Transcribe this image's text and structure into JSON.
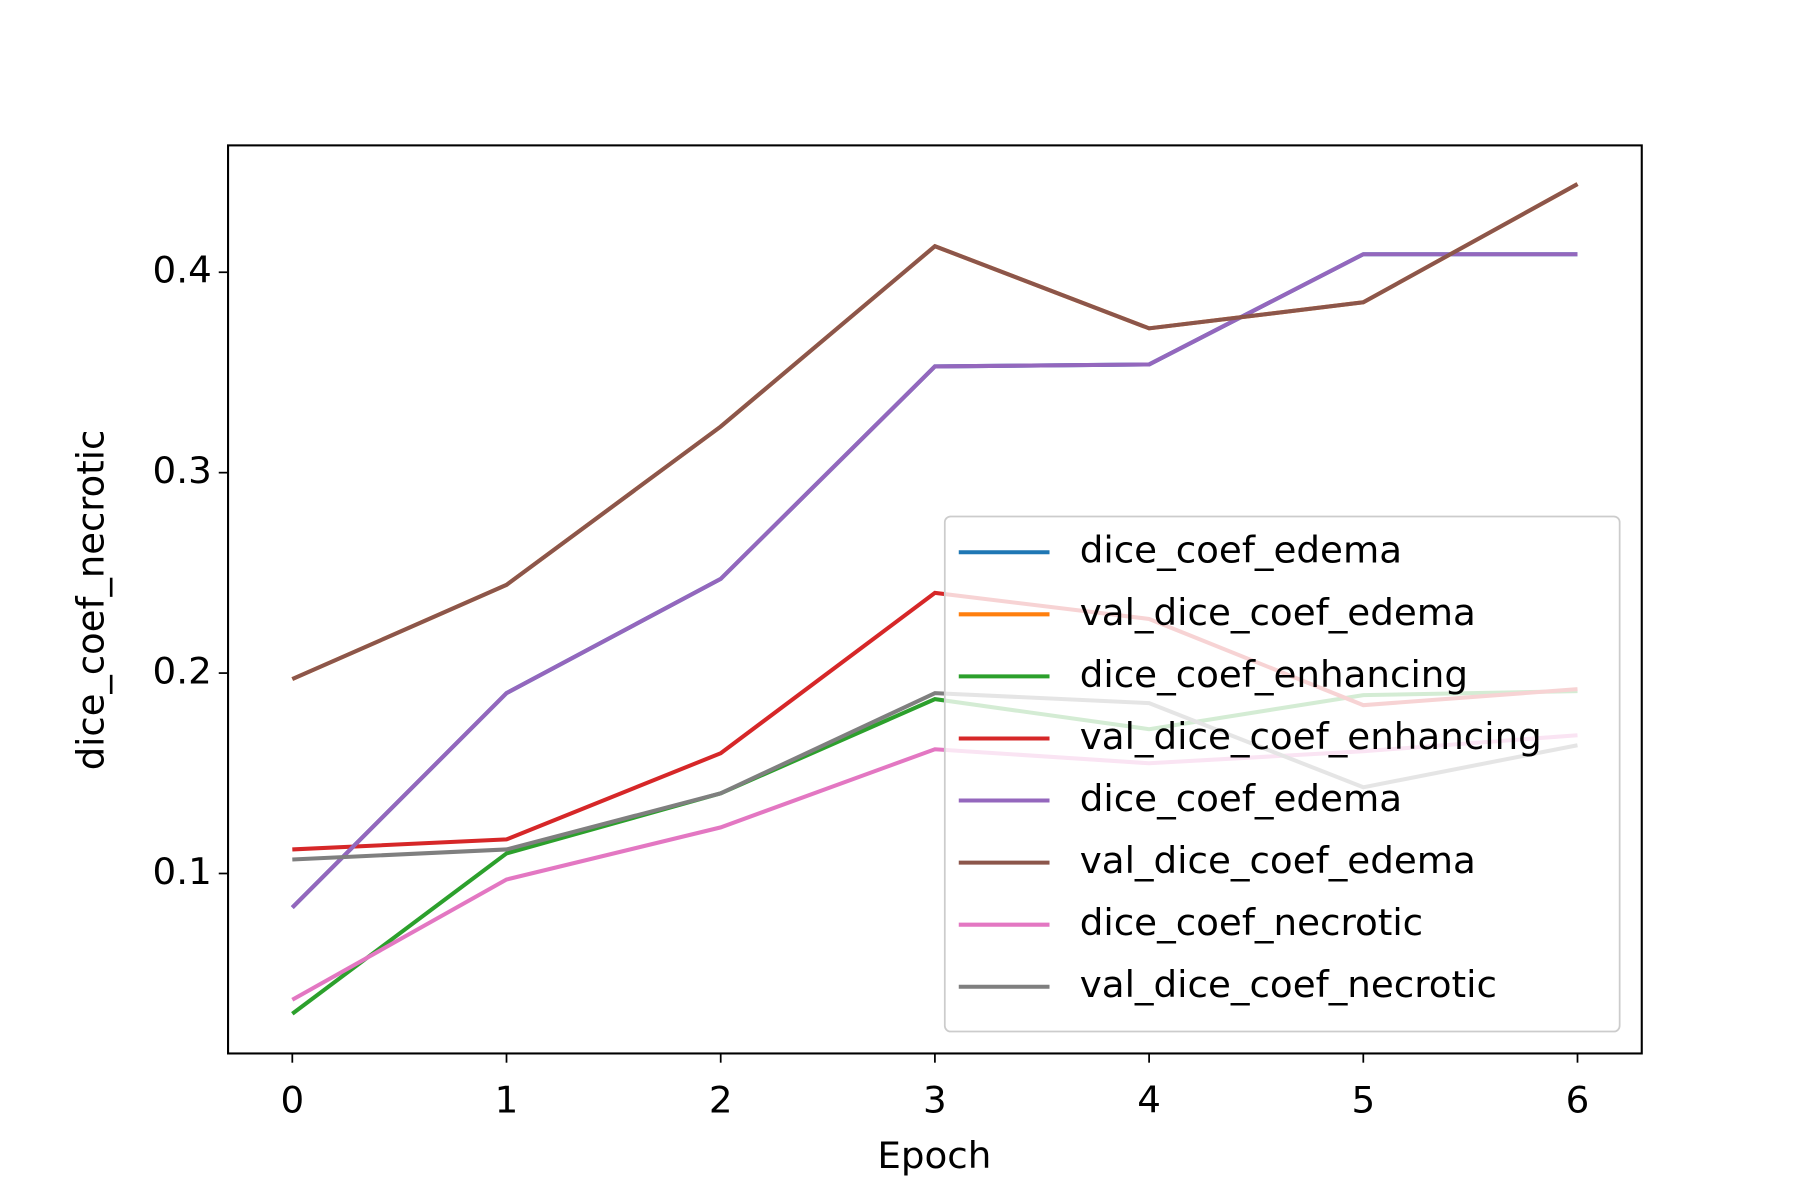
{
  "chart_data": {
    "type": "line",
    "xlabel": "Epoch",
    "ylabel": "dice_coef_necrotic",
    "x": [
      0,
      1,
      2,
      3,
      4,
      5,
      6
    ],
    "xlim": [
      -0.3,
      6.3
    ],
    "xticks": [
      0,
      1,
      2,
      3,
      4,
      5,
      6
    ],
    "ylim": [
      0.0102,
      0.4633
    ],
    "yticks": [
      0.1,
      0.2,
      0.3,
      0.4
    ],
    "legend": "lower right",
    "series": [
      {
        "name": "dice_coef_edema",
        "color": "#1f77b4",
        "values": [
          0.083,
          0.19,
          0.247,
          0.353,
          0.354,
          0.409,
          0.409
        ]
      },
      {
        "name": "val_dice_coef_edema",
        "color": "#ff7f0e",
        "values": [
          0.197,
          0.244,
          0.323,
          0.413,
          0.372,
          0.385,
          0.444
        ]
      },
      {
        "name": "dice_coef_enhancing",
        "color": "#2ca02c",
        "values": [
          0.03,
          0.11,
          0.14,
          0.187,
          0.172,
          0.189,
          0.191
        ]
      },
      {
        "name": "val_dice_coef_enhancing",
        "color": "#d62728",
        "values": [
          0.112,
          0.117,
          0.16,
          0.24,
          0.227,
          0.184,
          0.192
        ]
      },
      {
        "name": "dice_coef_edema",
        "color": "#9467bd",
        "values": [
          0.083,
          0.19,
          0.247,
          0.353,
          0.354,
          0.409,
          0.409
        ]
      },
      {
        "name": "val_dice_coef_edema",
        "color": "#8c564b",
        "values": [
          0.197,
          0.244,
          0.323,
          0.413,
          0.372,
          0.385,
          0.444
        ]
      },
      {
        "name": "dice_coef_necrotic",
        "color": "#e377c2",
        "values": [
          0.037,
          0.097,
          0.123,
          0.162,
          0.155,
          0.161,
          0.169
        ]
      },
      {
        "name": "val_dice_coef_necrotic",
        "color": "#7f7f7f",
        "values": [
          0.107,
          0.112,
          0.14,
          0.19,
          0.185,
          0.143,
          0.164
        ]
      }
    ]
  }
}
